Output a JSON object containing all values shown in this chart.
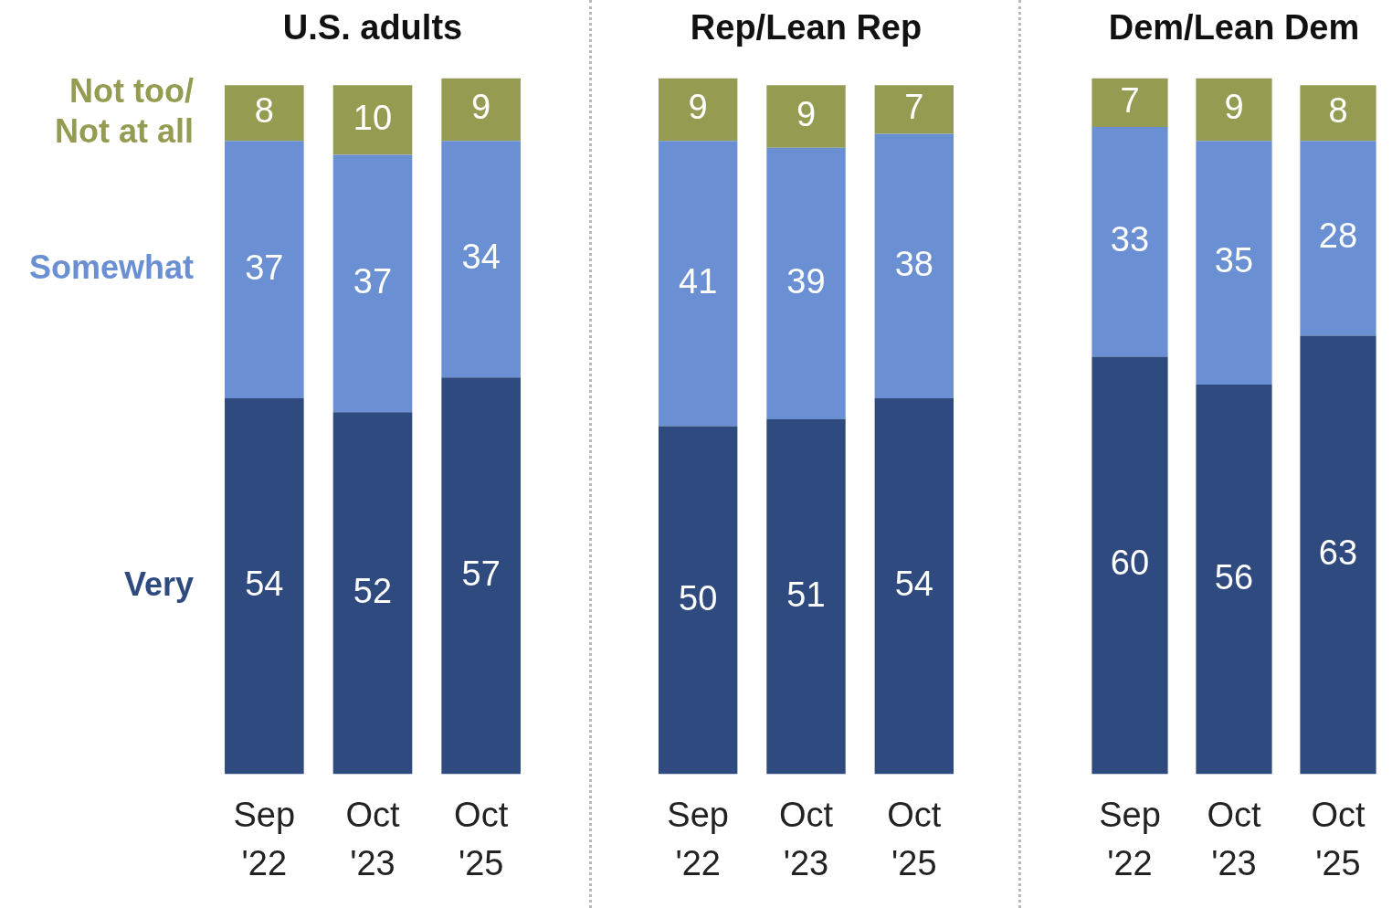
{
  "chart_data": [
    {
      "type": "bar",
      "title": "U.S. adults",
      "categories": [
        "Sep '22",
        "Oct '23",
        "Oct '25"
      ],
      "stacked": true,
      "data_labels": true,
      "legend": false,
      "grid": false,
      "series": [
        {
          "name": "Very",
          "color": "#2f4a7e",
          "values": [
            54,
            52,
            57
          ]
        },
        {
          "name": "Somewhat",
          "color": "#6a8fd3",
          "values": [
            37,
            37,
            34
          ]
        },
        {
          "name": "Not too/ Not at all",
          "color": "#959c52",
          "values": [
            8,
            10,
            9
          ]
        }
      ]
    },
    {
      "type": "bar",
      "title": "Rep/Lean Rep",
      "categories": [
        "Sep '22",
        "Oct '23",
        "Oct '25"
      ],
      "stacked": true,
      "data_labels": true,
      "legend": false,
      "grid": false,
      "series": [
        {
          "color": "#2f4a7e",
          "values": [
            50,
            51,
            54
          ]
        },
        {
          "color": "#6a8fd3",
          "values": [
            41,
            39,
            38
          ]
        },
        {
          "color": "#959c52",
          "values": [
            9,
            9,
            7
          ]
        }
      ]
    },
    {
      "type": "bar",
      "title": "Dem/Lean Dem",
      "categories": [
        "Sep '22",
        "Oct '23",
        "Oct '25"
      ],
      "stacked": true,
      "data_labels": true,
      "legend": false,
      "grid": false,
      "series": [
        {
          "color": "#2f4a7e",
          "values": [
            60,
            56,
            63
          ]
        },
        {
          "color": "#6a8fd3",
          "values": [
            33,
            35,
            28
          ]
        },
        {
          "color": "#959c52",
          "values": [
            7,
            9,
            8
          ]
        }
      ]
    }
  ]
}
